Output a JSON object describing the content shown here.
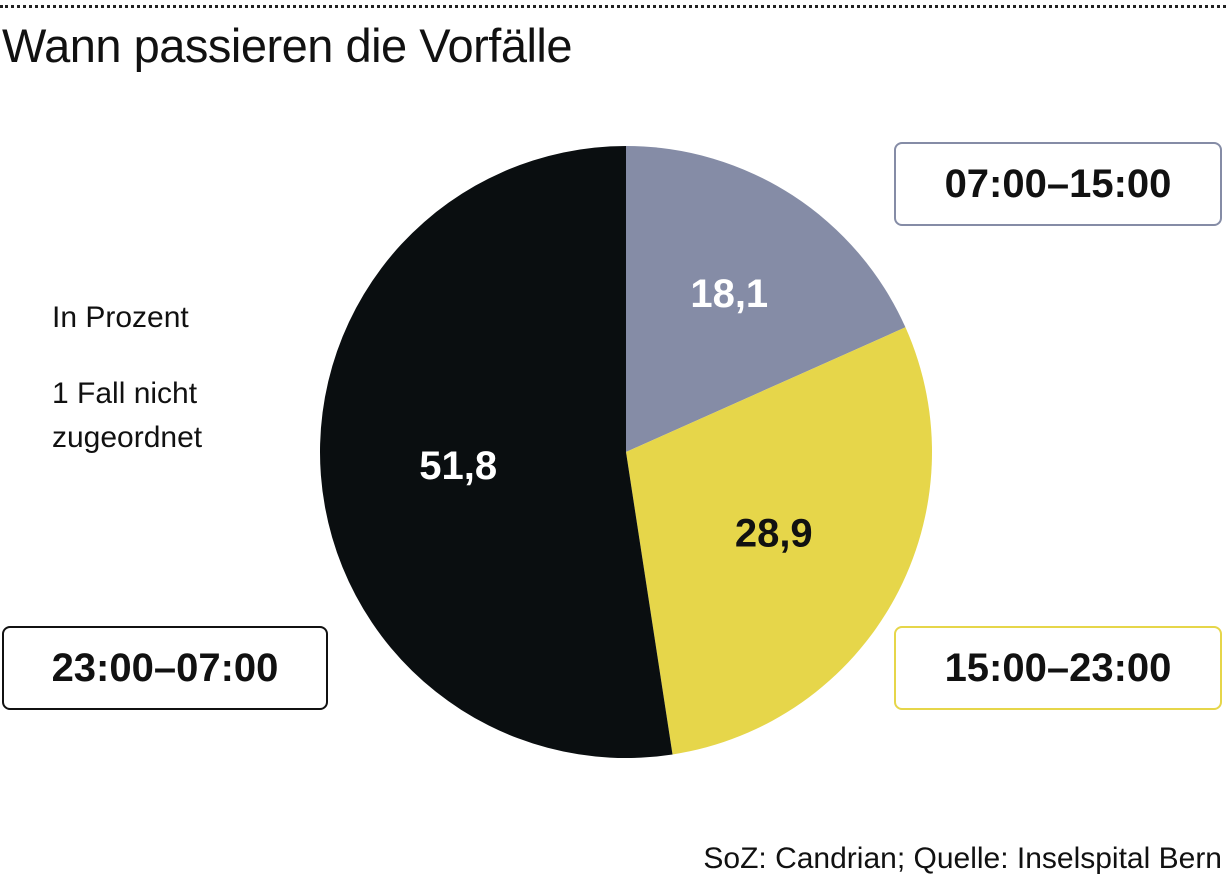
{
  "title": "Wann passieren die Vorfälle",
  "notes": {
    "unit": "In Prozent",
    "unassigned": "1 Fall nicht zugeordnet"
  },
  "source": "SoZ: Candrian; Quelle: Inselspital Bern",
  "chart_data": {
    "type": "pie",
    "title": "Wann passieren die Vorfälle",
    "categories": [
      "07:00–15:00",
      "15:00–23:00",
      "23:00–07:00"
    ],
    "values": [
      18.1,
      28.9,
      51.8
    ],
    "value_labels": [
      "18,1",
      "28,9",
      "51,8"
    ],
    "colors": [
      "#858ca6",
      "#e6d64a",
      "#0a0e10"
    ],
    "label_colors": [
      "#ffffff",
      "#111111",
      "#ffffff"
    ],
    "legend_border_colors": [
      "#858ca6",
      "#e6d64a",
      "#111111"
    ],
    "start_angle": "12 o'clock",
    "direction": "clockwise"
  }
}
